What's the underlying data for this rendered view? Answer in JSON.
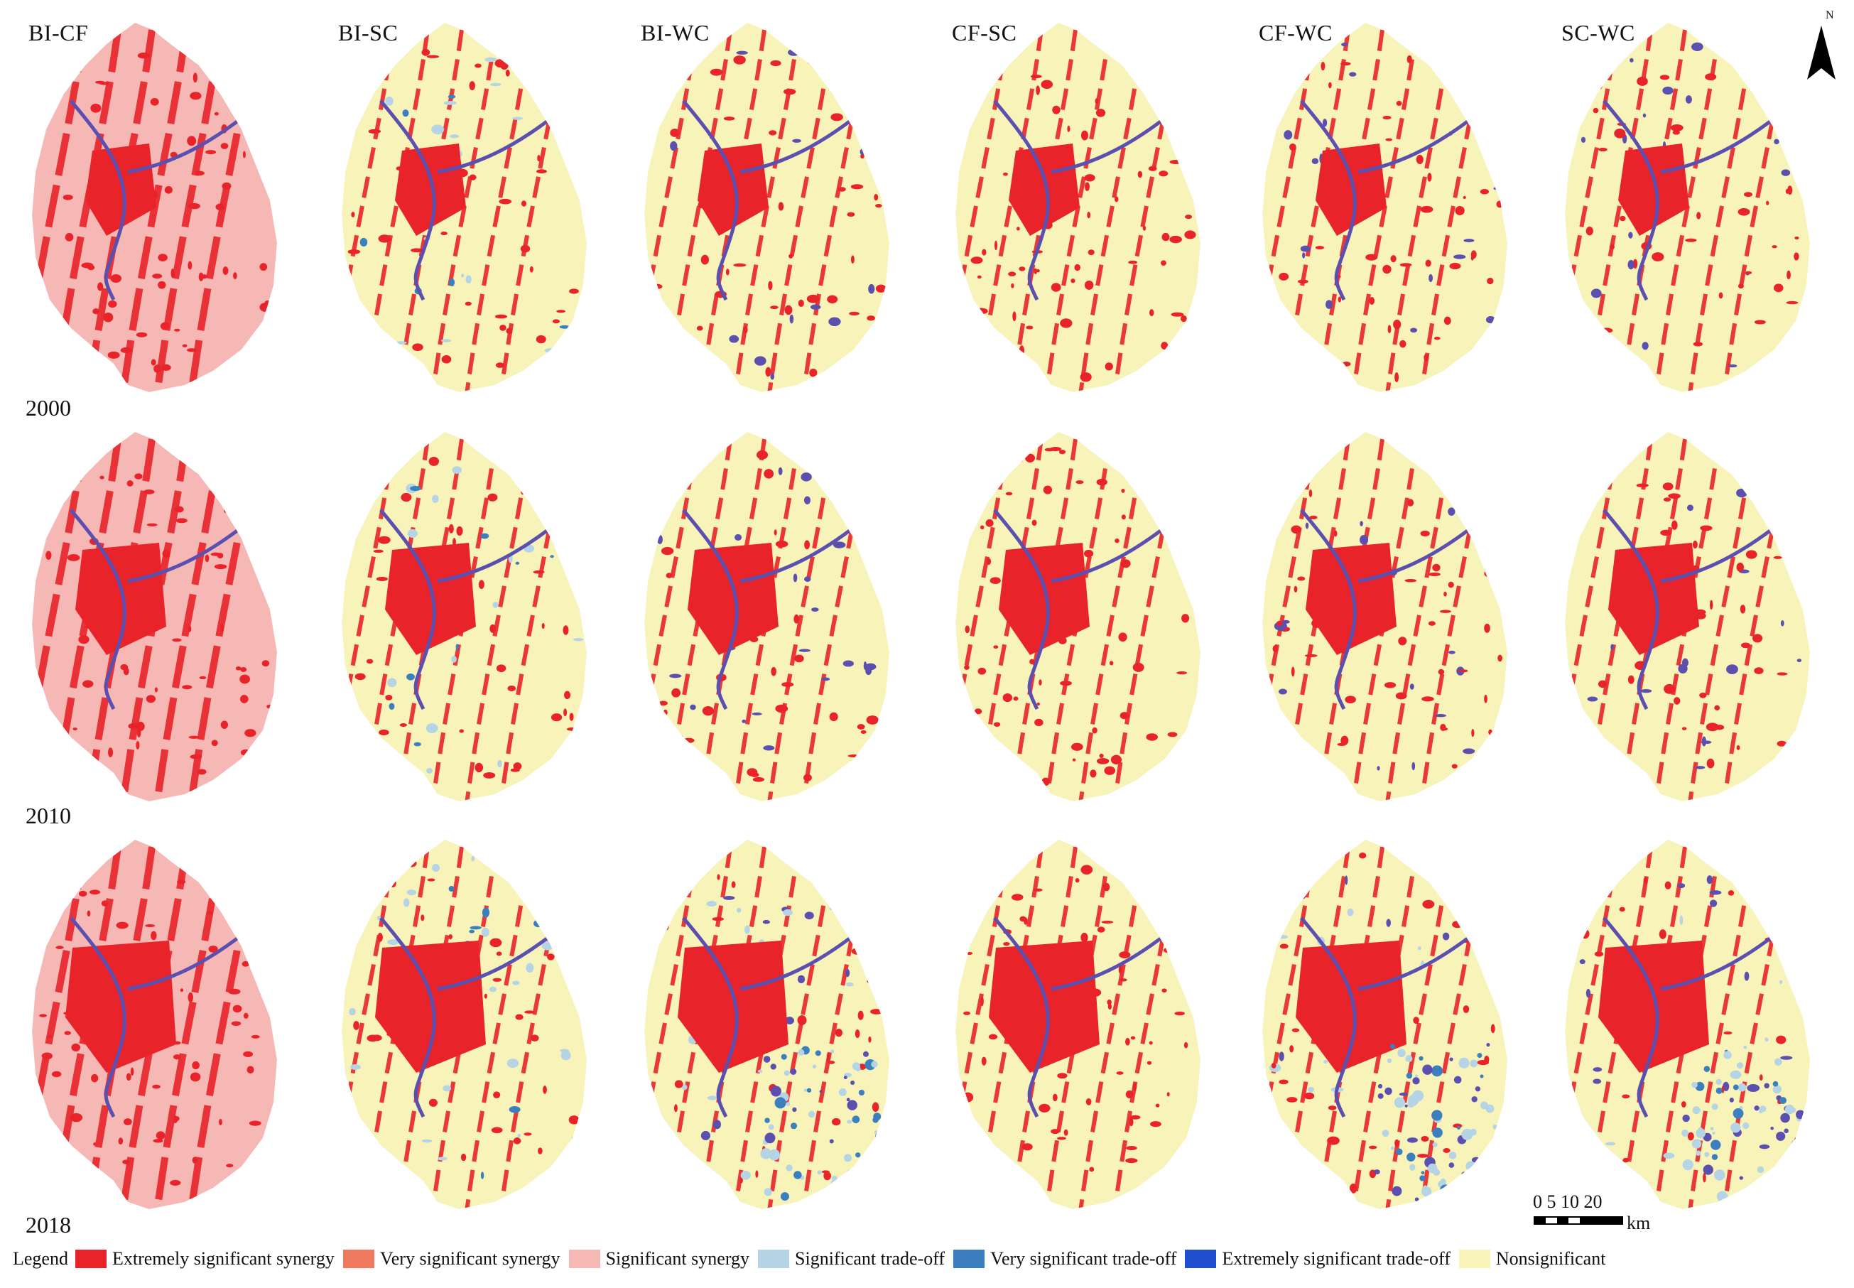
{
  "columns": [
    "BI-CF",
    "BI-SC",
    "BI-WC",
    "CF-SC",
    "CF-WC",
    "SC-WC"
  ],
  "years": [
    "2000",
    "2010",
    "2018"
  ],
  "north_label": "N",
  "scale_bar": {
    "ticks_text": "0 5 10   20",
    "unit": "km"
  },
  "legend": {
    "title": "Legend",
    "items": [
      {
        "label": "Extremely significant synergy",
        "color": "#e8232a"
      },
      {
        "label": "Very significant synergy",
        "color": "#ef7a5e"
      },
      {
        "label": "Significant synergy",
        "color": "#f6b8b4"
      },
      {
        "label": "Significant trade-off",
        "color": "#b5d4e6"
      },
      {
        "label": "Very significant trade-off",
        "color": "#3b7fbf"
      },
      {
        "label": "Extremely significant trade-off",
        "color": "#1f4fcf"
      },
      {
        "label": "Nonsignificant",
        "color": "#f8f3b8"
      }
    ]
  },
  "map_style": {
    "river_color": "#5b4fb0",
    "urban_color": "#e8232a",
    "base_by_column": {
      "BI-CF": "#f6b8b4",
      "BI-SC": "#f8f3b8",
      "BI-WC": "#f8f3b8",
      "CF-SC": "#f8f3b8",
      "CF-WC": "#f8f3b8",
      "SC-WC": "#f8f3b8"
    }
  }
}
